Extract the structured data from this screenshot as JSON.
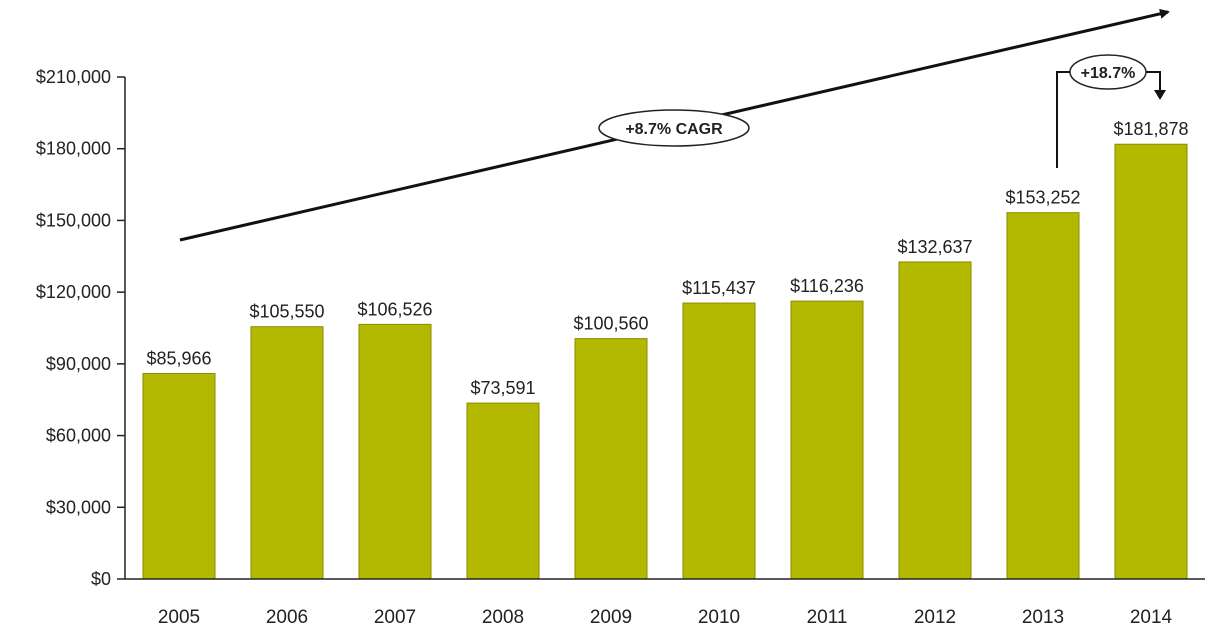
{
  "chart_data": {
    "type": "bar",
    "title": "",
    "xlabel": "",
    "ylabel": "",
    "categories": [
      "2005",
      "2006",
      "2007",
      "2008",
      "2009",
      "2010",
      "2011",
      "2012",
      "2013",
      "2014"
    ],
    "values": [
      85966,
      105550,
      106526,
      73591,
      100560,
      115437,
      116236,
      132637,
      153252,
      181878
    ],
    "value_labels": [
      "$85,966",
      "$105,550",
      "$106,526",
      "$73,591",
      "$100,560",
      "$115,437",
      "$116,236",
      "$132,637",
      "$153,252",
      "$181,878"
    ],
    "ylim": [
      0,
      210000
    ],
    "yticks": [
      0,
      30000,
      60000,
      90000,
      120000,
      150000,
      180000,
      210000
    ],
    "ytick_labels": [
      "$0",
      "$30,000",
      "$60,000",
      "$90,000",
      "$120,000",
      "$150,000",
      "$180,000",
      "$210,000"
    ],
    "grid": false,
    "colors": {
      "bar": "#b3b800",
      "bar_stroke": "#8a8d00",
      "axis": "#222222",
      "arrow": "#111111"
    },
    "annotations": {
      "cagr_label": "+8.7% CAGR",
      "growth_label": "+18.7%"
    }
  }
}
